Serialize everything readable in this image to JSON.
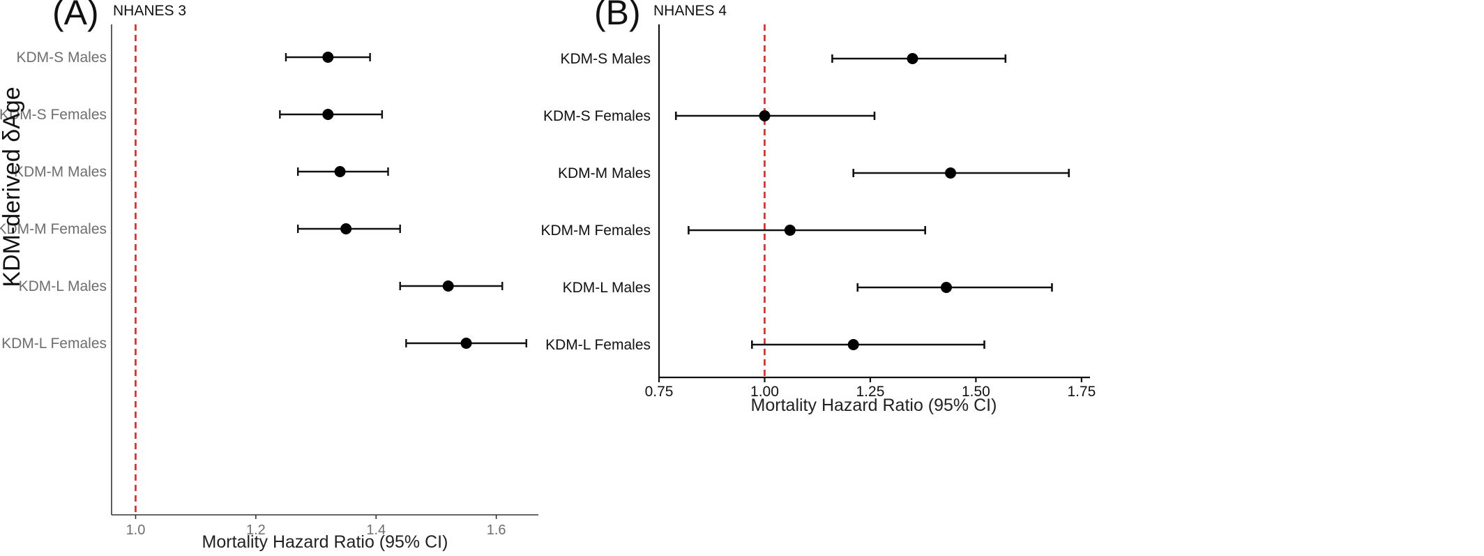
{
  "chart_data": [
    {
      "type": "scatter",
      "panel_label": "(A)",
      "title": "NHANES 3",
      "xlabel": "Mortality Hazard Ratio (95% CI)",
      "ylabel": "KDM-derived δAge",
      "reference_line": 1.0,
      "reference_color": "#e8211c",
      "xlim": [
        0.96,
        1.67
      ],
      "xticks": [
        {
          "value": 1.0,
          "label": "1.0"
        },
        {
          "value": 1.2,
          "label": "1.2"
        },
        {
          "value": 1.4,
          "label": "1.4"
        },
        {
          "value": 1.6,
          "label": "1.6"
        }
      ],
      "grid": false,
      "rows": [
        {
          "label": "KDM-S Males",
          "estimate": 1.32,
          "lower": 1.25,
          "upper": 1.39
        },
        {
          "label": "KDM-S Females",
          "estimate": 1.32,
          "lower": 1.24,
          "upper": 1.41
        },
        {
          "label": "KDM-M Males",
          "estimate": 1.34,
          "lower": 1.27,
          "upper": 1.42
        },
        {
          "label": "KDM-M Females",
          "estimate": 1.35,
          "lower": 1.27,
          "upper": 1.44
        },
        {
          "label": "KDM-L Males",
          "estimate": 1.52,
          "lower": 1.44,
          "upper": 1.61
        },
        {
          "label": "KDM-L Females",
          "estimate": 1.55,
          "lower": 1.45,
          "upper": 1.65
        }
      ]
    },
    {
      "type": "scatter",
      "panel_label": "(B)",
      "title": "NHANES 4",
      "xlabel": "Mortality Hazard Ratio (95% CI)",
      "ylabel": "",
      "reference_line": 1.0,
      "reference_color": "#e8211c",
      "xlim": [
        0.75,
        1.77
      ],
      "xticks": [
        {
          "value": 0.75,
          "label": "0.75"
        },
        {
          "value": 1.0,
          "label": "1.00"
        },
        {
          "value": 1.25,
          "label": "1.25"
        },
        {
          "value": 1.5,
          "label": "1.50"
        },
        {
          "value": 1.75,
          "label": "1.75"
        }
      ],
      "grid": false,
      "rows": [
        {
          "label": "KDM-S Males",
          "estimate": 1.35,
          "lower": 1.16,
          "upper": 1.57
        },
        {
          "label": "KDM-S Females",
          "estimate": 1.0,
          "lower": 0.79,
          "upper": 1.26
        },
        {
          "label": "KDM-M Males",
          "estimate": 1.44,
          "lower": 1.21,
          "upper": 1.72
        },
        {
          "label": "KDM-M Females",
          "estimate": 1.06,
          "lower": 0.82,
          "upper": 1.38
        },
        {
          "label": "KDM-L Males",
          "estimate": 1.43,
          "lower": 1.22,
          "upper": 1.68
        },
        {
          "label": "KDM-L Females",
          "estimate": 1.21,
          "lower": 0.97,
          "upper": 1.52
        }
      ]
    }
  ]
}
